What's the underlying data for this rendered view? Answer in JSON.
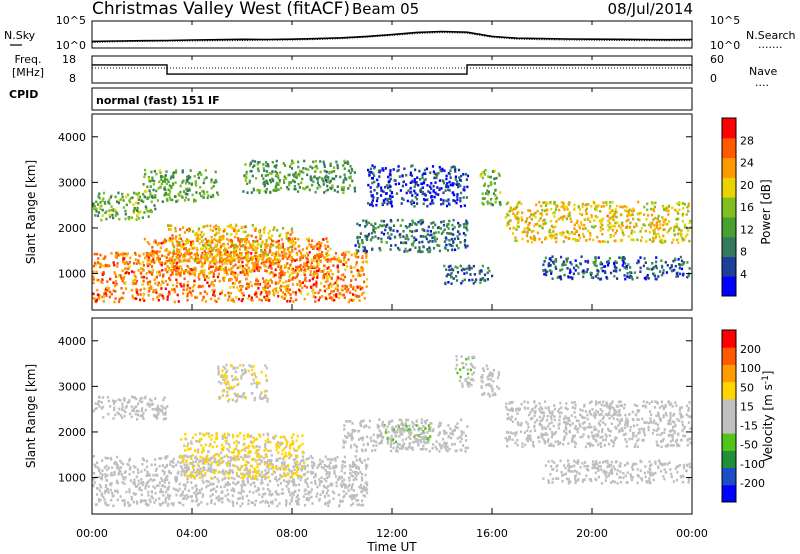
{
  "header": {
    "station": "Christmas Valley West (fitACF)",
    "beam": "Beam 05",
    "date": "08/Jul/2014"
  },
  "panels": {
    "noise": {
      "left_label": "N.Sky",
      "left_ticks": [
        "10^5",
        "10^0"
      ],
      "right_ticks": [
        "10^5",
        "10^0"
      ],
      "right_label": "N.Search",
      "right_marker": "......."
    },
    "freq": {
      "left_label_1": "Freq.",
      "left_label_2": "[MHz]",
      "left_ticks": [
        "18",
        "8"
      ],
      "right_ticks": [
        "60",
        "0"
      ],
      "right_label": "Nave",
      "right_marker": "...."
    },
    "cpid": {
      "label": "CPID",
      "text": "normal (fast) 151 IF"
    }
  },
  "colors": {
    "power_scale": [
      "#0000ff",
      "#1e3f99",
      "#357a5f",
      "#48a02f",
      "#7fbf1f",
      "#e8d400",
      "#ff9900",
      "#ff5a00",
      "#ff0000"
    ],
    "velocity_scale": [
      "#ff0000",
      "#ff5a00",
      "#ff9d00",
      "#ffd400",
      "#c0c0c0",
      "#c0c0c0",
      "#52c41a",
      "#1f8f3a",
      "#1a4dc7",
      "#0000ff"
    ],
    "ground_scatter": "#bebebe"
  },
  "chart_data": [
    {
      "type": "line",
      "title": "",
      "xlabel": "",
      "ylabel": "N.Sky",
      "y_scale": "log",
      "ylim": [
        1,
        100000
      ],
      "x": [
        "00:00",
        "01:00",
        "02:00",
        "03:00",
        "04:00",
        "05:00",
        "06:00",
        "07:00",
        "08:00",
        "09:00",
        "10:00",
        "11:00",
        "12:00",
        "13:00",
        "14:00",
        "15:00",
        "16:00",
        "17:00",
        "18:00",
        "19:00",
        "20:00",
        "21:00",
        "22:00",
        "23:00",
        "24:00"
      ],
      "series": [
        {
          "name": "N.Sky",
          "values": [
            10,
            12,
            14,
            16,
            20,
            24,
            28,
            26,
            30,
            40,
            60,
            120,
            300,
            900,
            1400,
            1000,
            120,
            50,
            40,
            34,
            30,
            28,
            26,
            24,
            26
          ]
        },
        {
          "name": "N.Search",
          "values": [
            6,
            8,
            10,
            11,
            12,
            14,
            16,
            18,
            20,
            26,
            40,
            80,
            200,
            500,
            800,
            600,
            80,
            30,
            24,
            20,
            18,
            16,
            15,
            14,
            15
          ]
        }
      ]
    },
    {
      "type": "line",
      "ylabel": "Freq. [MHz]",
      "ylim": [
        8,
        18
      ],
      "x": [
        "00:00",
        "03:00",
        "03:00",
        "15:00",
        "15:00",
        "24:00"
      ],
      "series": [
        {
          "name": "Freq.",
          "values": [
            15,
            15,
            11,
            11,
            15,
            15
          ]
        },
        {
          "name": "Nave",
          "axis": "right",
          "ylim": [
            0,
            60
          ],
          "values": [
            34,
            34,
            34,
            34,
            34,
            34
          ]
        }
      ]
    },
    {
      "type": "heatmap",
      "xlabel": "",
      "ylabel": "Slant Range [km]",
      "xlim_hours": [
        0,
        24
      ],
      "ylim": [
        200,
        4500
      ],
      "y_ticks": [
        "1000",
        "2000",
        "3000",
        "4000"
      ],
      "colorbar_label": "Power [dB]",
      "colorbar_ticks": [
        "4",
        "8",
        "12",
        "16",
        "20",
        "24",
        "28"
      ],
      "colorbar_range": [
        0,
        32
      ],
      "regions": [
        {
          "t0": 0.0,
          "t1": 11.0,
          "r0": 400,
          "r1": 1500,
          "value": 25
        },
        {
          "t0": 2.0,
          "t1": 9.5,
          "r0": 1000,
          "r1": 1800,
          "value": 24
        },
        {
          "t0": 3.0,
          "t1": 8.0,
          "r0": 1300,
          "r1": 2100,
          "value": 21
        },
        {
          "t0": 0.0,
          "t1": 2.5,
          "r0": 2200,
          "r1": 2800,
          "value": 14
        },
        {
          "t0": 2.0,
          "t1": 5.0,
          "r0": 2600,
          "r1": 3300,
          "value": 13
        },
        {
          "t0": 6.0,
          "t1": 10.5,
          "r0": 2800,
          "r1": 3500,
          "value": 12
        },
        {
          "t0": 10.5,
          "t1": 15.0,
          "r0": 1500,
          "r1": 2200,
          "value": 8
        },
        {
          "t0": 11.0,
          "t1": 15.0,
          "r0": 2500,
          "r1": 3400,
          "value": 5
        },
        {
          "t0": 15.5,
          "t1": 16.3,
          "r0": 2500,
          "r1": 3300,
          "value": 13
        },
        {
          "t0": 16.5,
          "t1": 23.9,
          "r0": 1700,
          "r1": 2600,
          "value": 20
        },
        {
          "t0": 18.0,
          "t1": 23.9,
          "r0": 900,
          "r1": 1400,
          "value": 7
        },
        {
          "t0": 14.0,
          "t1": 16.0,
          "r0": 800,
          "r1": 1200,
          "value": 8
        }
      ]
    },
    {
      "type": "heatmap",
      "xlabel": "Time UT",
      "ylabel": "Slant Range [km]",
      "x_ticks": [
        "00:00",
        "04:00",
        "08:00",
        "12:00",
        "16:00",
        "20:00",
        "00:00"
      ],
      "xlim_hours": [
        0,
        24
      ],
      "ylim": [
        200,
        4500
      ],
      "y_ticks": [
        "1000",
        "2000",
        "3000",
        "4000"
      ],
      "colorbar_label": "Velocity [m s^-1]",
      "colorbar_ticks": [
        "200",
        "100",
        "50",
        "15",
        "-15",
        "-50",
        "-100",
        "-200"
      ],
      "colorbar_range": [
        -250,
        250
      ],
      "regions": [
        {
          "t0": 0.0,
          "t1": 11.0,
          "r0": 400,
          "r1": 1500,
          "value": 0,
          "ground_scatter": true
        },
        {
          "t0": 3.5,
          "t1": 8.5,
          "r0": 1000,
          "r1": 2000,
          "value": -60
        },
        {
          "t0": 0.0,
          "t1": 3.0,
          "r0": 2300,
          "r1": 2800,
          "value": 0,
          "ground_scatter": true
        },
        {
          "t0": 5.0,
          "t1": 7.0,
          "r0": 2700,
          "r1": 3500,
          "value": -40
        },
        {
          "t0": 10.0,
          "t1": 15.0,
          "r0": 1600,
          "r1": 2300,
          "value": 0,
          "ground_scatter": true
        },
        {
          "t0": 11.5,
          "t1": 13.5,
          "r0": 1800,
          "r1": 2200,
          "value": 40
        },
        {
          "t0": 16.5,
          "t1": 23.9,
          "r0": 1700,
          "r1": 2700,
          "value": 0,
          "ground_scatter": true
        },
        {
          "t0": 18.0,
          "t1": 23.9,
          "r0": 900,
          "r1": 1400,
          "value": 0,
          "ground_scatter": true
        },
        {
          "t0": 15.5,
          "t1": 16.3,
          "r0": 2800,
          "r1": 3500,
          "value": 0,
          "ground_scatter": true
        },
        {
          "t0": 14.5,
          "t1": 15.3,
          "r0": 3000,
          "r1": 3700,
          "value": 30
        }
      ]
    }
  ],
  "x_axis": {
    "ticks": [
      "00:00",
      "04:00",
      "08:00",
      "12:00",
      "16:00",
      "20:00",
      "00:00"
    ],
    "label": "Time UT"
  }
}
